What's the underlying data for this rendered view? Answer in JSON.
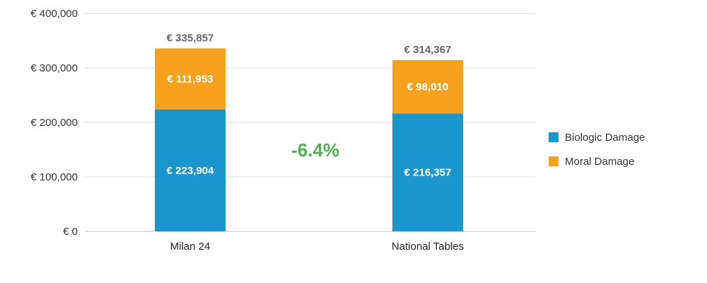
{
  "chart_data": {
    "type": "bar",
    "stacked": true,
    "categories": [
      "Milan 24",
      "National Tables"
    ],
    "series": [
      {
        "name": "Biologic Damage",
        "color": "#1b96cc",
        "values": [
          223904,
          216357
        ],
        "labels": [
          "€ 223,904",
          "€ 216,357"
        ]
      },
      {
        "name": "Moral Damage",
        "color": "#f5a21e",
        "values": [
          111953,
          98010
        ],
        "labels": [
          "€ 111,953",
          "€ 98,010"
        ]
      }
    ],
    "totals": [
      335857,
      314367
    ],
    "total_labels": [
      "€ 335,857",
      "€ 314,367"
    ],
    "ylim": [
      0,
      400000
    ],
    "yticks": [
      0,
      100000,
      200000,
      300000,
      400000
    ],
    "ytick_labels": [
      "€ 0",
      "€ 100,000",
      "€ 200,000",
      "€ 300,000",
      "€ 400,000"
    ],
    "annotation": {
      "text": "-6.4%",
      "color": "#4caf50"
    },
    "grid": true,
    "legend_position": "right",
    "title": "",
    "xlabel": "",
    "ylabel": ""
  }
}
